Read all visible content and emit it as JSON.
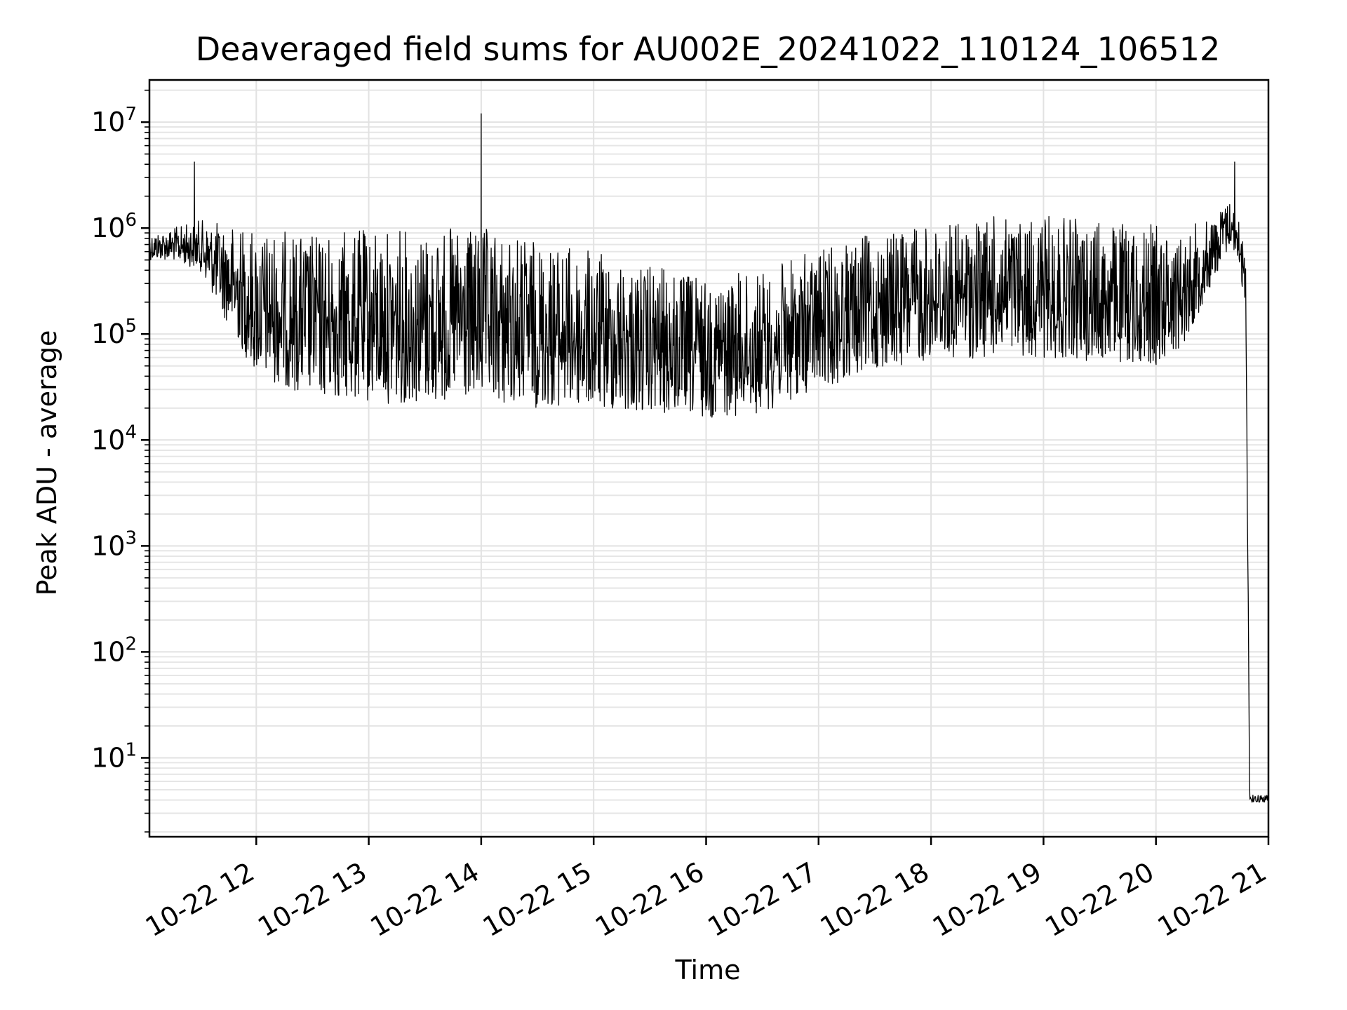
{
  "chart_data": {
    "type": "line",
    "title": "Deaveraged field sums for AU002E_20241022_110124_106512",
    "xlabel": "Time",
    "ylabel": "Peak ADU - average",
    "y_scale": "log",
    "ylim": [
      1.8,
      25000000
    ],
    "xlim": [
      "2024-10-22 11:03",
      "2024-10-22 21:00"
    ],
    "grid": true,
    "x_ticks": [
      "10-22 12",
      "10-22 13",
      "10-22 14",
      "10-22 15",
      "10-22 16",
      "10-22 17",
      "10-22 18",
      "10-22 19",
      "10-22 20",
      "10-22 21"
    ],
    "y_ticks": [
      {
        "value": 10,
        "base": "10",
        "exp": "1"
      },
      {
        "value": 100,
        "base": "10",
        "exp": "2"
      },
      {
        "value": 1000,
        "base": "10",
        "exp": "3"
      },
      {
        "value": 10000,
        "base": "10",
        "exp": "4"
      },
      {
        "value": 100000,
        "base": "10",
        "exp": "5"
      },
      {
        "value": 1000000,
        "base": "10",
        "exp": "6"
      },
      {
        "value": 10000000,
        "base": "10",
        "exp": "7"
      }
    ],
    "series": [
      {
        "color": "#000000",
        "envelope": {
          "x": [
            "2024-10-22 11:03",
            "2024-10-22 11:15",
            "2024-10-22 11:30",
            "2024-10-22 11:45",
            "2024-10-22 12:00",
            "2024-10-22 12:30",
            "2024-10-22 13:00",
            "2024-10-22 13:30",
            "2024-10-22 14:00",
            "2024-10-22 14:30",
            "2024-10-22 15:00",
            "2024-10-22 15:30",
            "2024-10-22 16:00",
            "2024-10-22 16:30",
            "2024-10-22 17:00",
            "2024-10-22 17:30",
            "2024-10-22 18:00",
            "2024-10-22 18:30",
            "2024-10-22 19:00",
            "2024-10-22 19:30",
            "2024-10-22 20:00",
            "2024-10-22 20:15",
            "2024-10-22 20:30",
            "2024-10-22 20:40",
            "2024-10-22 20:45",
            "2024-10-22 20:48",
            "2024-10-22 20:50",
            "2024-10-22 21:00"
          ],
          "high": [
            900000,
            1000000,
            1200000,
            1100000,
            1000000,
            900000,
            1000000,
            1000000,
            1000000,
            800000,
            600000,
            450000,
            350000,
            400000,
            650000,
            900000,
            1100000,
            1300000,
            1300000,
            1200000,
            1100000,
            1000000,
            1300000,
            2000000,
            1200000,
            500000,
            4.5,
            4.5
          ],
          "low": [
            500000,
            500000,
            400000,
            120000,
            40000,
            25000,
            22000,
            22000,
            22000,
            20000,
            19000,
            17000,
            16000,
            18000,
            30000,
            45000,
            55000,
            60000,
            60000,
            55000,
            50000,
            80000,
            300000,
            700000,
            400000,
            100000,
            3.8,
            3.8
          ]
        },
        "spikes": [
          {
            "x": "2024-10-22 11:27",
            "y": 4200000
          },
          {
            "x": "2024-10-22 14:00",
            "y": 12000000
          },
          {
            "x": "2024-10-22 20:42",
            "y": 4200000
          }
        ]
      }
    ]
  }
}
